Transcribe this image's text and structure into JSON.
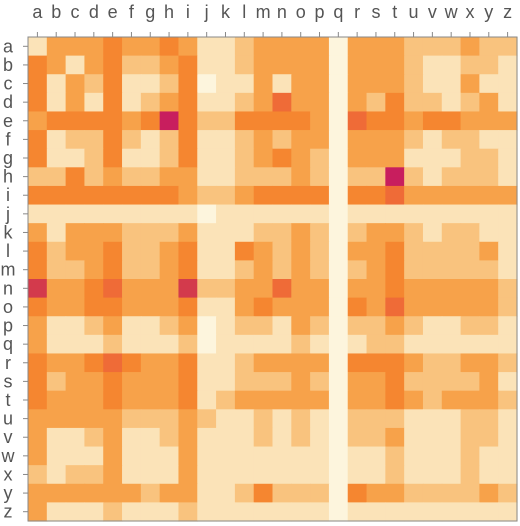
{
  "chart_data": {
    "type": "heatmap",
    "title": "",
    "xlabel": "",
    "ylabel": "",
    "x_labels": [
      "a",
      "b",
      "c",
      "d",
      "e",
      "f",
      "g",
      "h",
      "i",
      "j",
      "k",
      "l",
      "m",
      "n",
      "o",
      "p",
      "q",
      "r",
      "s",
      "t",
      "u",
      "v",
      "w",
      "x",
      "y",
      "z"
    ],
    "y_labels": [
      "a",
      "b",
      "c",
      "d",
      "e",
      "f",
      "g",
      "h",
      "i",
      "j",
      "k",
      "l",
      "m",
      "n",
      "o",
      "p",
      "q",
      "r",
      "s",
      "t",
      "u",
      "v",
      "w",
      "x",
      "y",
      "z"
    ],
    "x_axis_position": "top",
    "y_axis_position": "left",
    "value_range": [
      0,
      7
    ],
    "color_scale": [
      "#fdf5dd",
      "#fbe3b8",
      "#f9c37e",
      "#f7a24a",
      "#f58630",
      "#ef6b37",
      "#d33a4c",
      "#c81e5e"
    ],
    "legend": "none",
    "grid": false,
    "values": [
      [
        1,
        3,
        3,
        3,
        4,
        3,
        3,
        4,
        3,
        1,
        1,
        2,
        3,
        3,
        3,
        3,
        0,
        3,
        3,
        3,
        2,
        2,
        2,
        3,
        2,
        2
      ],
      [
        4,
        3,
        1,
        3,
        4,
        2,
        2,
        3,
        4,
        1,
        1,
        2,
        3,
        3,
        3,
        3,
        0,
        3,
        3,
        3,
        2,
        1,
        1,
        2,
        2,
        1
      ],
      [
        4,
        1,
        3,
        2,
        4,
        1,
        1,
        2,
        4,
        0,
        1,
        1,
        3,
        1,
        3,
        3,
        0,
        3,
        3,
        3,
        2,
        1,
        1,
        3,
        1,
        1
      ],
      [
        4,
        1,
        3,
        1,
        4,
        1,
        2,
        3,
        4,
        1,
        1,
        2,
        3,
        5,
        3,
        3,
        0,
        3,
        2,
        4,
        2,
        2,
        1,
        2,
        3,
        1
      ],
      [
        3,
        4,
        4,
        4,
        4,
        3,
        4,
        7,
        4,
        2,
        2,
        4,
        4,
        4,
        4,
        3,
        0,
        5,
        4,
        4,
        3,
        4,
        4,
        3,
        3,
        3
      ],
      [
        4,
        1,
        2,
        2,
        4,
        2,
        1,
        2,
        4,
        1,
        1,
        2,
        3,
        2,
        3,
        3,
        0,
        3,
        3,
        3,
        2,
        1,
        2,
        2,
        1,
        1
      ],
      [
        4,
        1,
        1,
        2,
        4,
        1,
        1,
        2,
        4,
        1,
        1,
        2,
        3,
        4,
        3,
        2,
        0,
        3,
        3,
        3,
        1,
        1,
        1,
        2,
        2,
        1
      ],
      [
        2,
        2,
        4,
        2,
        3,
        2,
        2,
        3,
        3,
        1,
        1,
        2,
        2,
        2,
        3,
        2,
        0,
        2,
        2,
        7,
        2,
        1,
        2,
        2,
        2,
        1
      ],
      [
        4,
        4,
        4,
        4,
        4,
        4,
        4,
        4,
        3,
        2,
        2,
        3,
        4,
        4,
        4,
        4,
        0,
        4,
        4,
        5,
        3,
        3,
        3,
        3,
        3,
        3
      ],
      [
        1,
        1,
        1,
        1,
        1,
        1,
        1,
        1,
        1,
        0,
        1,
        1,
        1,
        1,
        1,
        1,
        0,
        1,
        1,
        1,
        1,
        1,
        1,
        1,
        1,
        1
      ],
      [
        3,
        1,
        3,
        3,
        3,
        2,
        2,
        2,
        3,
        1,
        1,
        1,
        2,
        2,
        3,
        2,
        0,
        2,
        3,
        3,
        2,
        1,
        2,
        2,
        1,
        1
      ],
      [
        4,
        2,
        3,
        3,
        4,
        2,
        2,
        3,
        4,
        1,
        1,
        4,
        3,
        2,
        3,
        2,
        0,
        3,
        3,
        4,
        2,
        2,
        2,
        2,
        3,
        1
      ],
      [
        4,
        2,
        2,
        3,
        4,
        2,
        2,
        3,
        4,
        1,
        1,
        2,
        3,
        2,
        3,
        2,
        0,
        2,
        3,
        4,
        2,
        2,
        2,
        2,
        2,
        1
      ],
      [
        6,
        3,
        3,
        4,
        5,
        3,
        3,
        3,
        6,
        2,
        2,
        3,
        3,
        5,
        3,
        3,
        0,
        3,
        3,
        4,
        3,
        3,
        3,
        3,
        3,
        2
      ],
      [
        4,
        3,
        3,
        4,
        4,
        3,
        3,
        3,
        4,
        1,
        1,
        3,
        4,
        3,
        3,
        3,
        0,
        4,
        3,
        5,
        3,
        3,
        3,
        3,
        3,
        2
      ],
      [
        3,
        1,
        1,
        2,
        3,
        1,
        1,
        2,
        3,
        0,
        1,
        2,
        2,
        1,
        3,
        2,
        0,
        2,
        2,
        3,
        2,
        1,
        1,
        2,
        2,
        1
      ],
      [
        3,
        1,
        1,
        1,
        2,
        1,
        1,
        1,
        2,
        0,
        1,
        1,
        1,
        1,
        2,
        1,
        0,
        1,
        2,
        2,
        1,
        1,
        1,
        1,
        1,
        1
      ],
      [
        4,
        3,
        3,
        4,
        5,
        4,
        3,
        3,
        4,
        1,
        1,
        2,
        3,
        3,
        3,
        3,
        0,
        4,
        4,
        4,
        3,
        2,
        2,
        3,
        3,
        2
      ],
      [
        4,
        2,
        3,
        3,
        4,
        3,
        3,
        3,
        4,
        1,
        1,
        2,
        2,
        2,
        3,
        2,
        0,
        3,
        3,
        4,
        2,
        2,
        2,
        2,
        3,
        1
      ],
      [
        4,
        3,
        3,
        3,
        4,
        3,
        3,
        3,
        4,
        1,
        2,
        3,
        3,
        3,
        3,
        3,
        0,
        3,
        3,
        4,
        3,
        2,
        3,
        3,
        3,
        2
      ],
      [
        3,
        3,
        3,
        3,
        3,
        2,
        2,
        2,
        3,
        2,
        1,
        1,
        2,
        1,
        2,
        1,
        0,
        2,
        2,
        2,
        1,
        1,
        1,
        2,
        2,
        1
      ],
      [
        3,
        1,
        1,
        2,
        3,
        1,
        1,
        2,
        3,
        1,
        1,
        1,
        2,
        1,
        2,
        1,
        0,
        2,
        2,
        3,
        1,
        1,
        1,
        2,
        2,
        1
      ],
      [
        3,
        1,
        1,
        1,
        3,
        1,
        1,
        1,
        3,
        1,
        1,
        1,
        1,
        1,
        1,
        1,
        0,
        1,
        1,
        2,
        1,
        1,
        1,
        2,
        1,
        1
      ],
      [
        2,
        1,
        2,
        2,
        3,
        1,
        1,
        1,
        3,
        1,
        1,
        1,
        1,
        1,
        1,
        1,
        0,
        1,
        1,
        2,
        1,
        1,
        1,
        2,
        1,
        1
      ],
      [
        3,
        3,
        3,
        3,
        3,
        3,
        2,
        3,
        3,
        1,
        1,
        2,
        4,
        2,
        2,
        2,
        0,
        4,
        3,
        3,
        2,
        2,
        2,
        2,
        3,
        2
      ],
      [
        3,
        1,
        1,
        1,
        2,
        1,
        1,
        1,
        2,
        1,
        1,
        1,
        1,
        1,
        1,
        1,
        0,
        1,
        1,
        1,
        1,
        1,
        1,
        1,
        1,
        1
      ]
    ]
  }
}
